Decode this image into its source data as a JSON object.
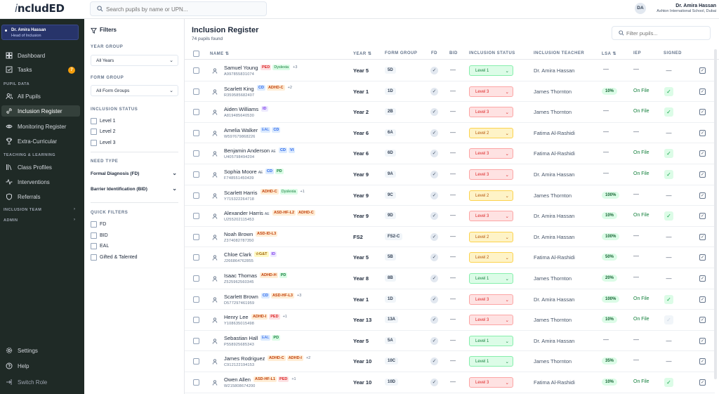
{
  "app": {
    "logo": "ncludED",
    "logo_prefix": "i"
  },
  "search": {
    "placeholder": "Search pupils by name or UPN..."
  },
  "user": {
    "initials": "DA",
    "name": "Dr. Amira Hassan",
    "school": "Ashton International School, Dubai"
  },
  "sidebar": {
    "role": {
      "name": "Dr. Amira Hassan",
      "title": "Head of Inclusion"
    },
    "dashboard": "Dashboard",
    "tasks": "Tasks",
    "tasks_badge": "7",
    "section_pupil": "PUPIL DATA",
    "all_pupils": "All Pupils",
    "inclusion_register": "Inclusion Register",
    "monitoring_register": "Monitoring Register",
    "extra_curricular": "Extra-Curricular",
    "section_teaching": "TEACHING & LEARNING",
    "class_profiles": "Class Profiles",
    "interventions": "Interventions",
    "referrals": "Referrals",
    "section_team": "INCLUSION TEAM",
    "section_admin": "ADMIN",
    "settings": "Settings",
    "help": "Help",
    "switch_role": "Switch Role"
  },
  "filters": {
    "title": "Filters",
    "year_group_label": "YEAR GROUP",
    "year_group_value": "All Years",
    "form_group_label": "FORM GROUP",
    "form_group_value": "All Form Groups",
    "inclusion_status_label": "INCLUSION STATUS",
    "status_options": [
      "Level 1",
      "Level 2",
      "Level 3"
    ],
    "need_type_label": "NEED TYPE",
    "need_fd": "Formal Diagnosis (FD)",
    "need_bid": "Barrier Identification (BID)",
    "quick_filters_label": "QUICK FILTERS",
    "quick_options": [
      "FD",
      "BID",
      "EAL",
      "Gifted & Talented"
    ]
  },
  "main": {
    "title": "Inclusion Register",
    "count": "74 pupils found",
    "filter_placeholder": "Filter pupils...",
    "columns": {
      "name": "NAME ⇅",
      "year": "YEAR ⇅",
      "form": "FORM GROUP",
      "fd": "FD",
      "bid": "BID",
      "status": "INCLUSION STATUS",
      "teacher": "INCLUSION TEACHER",
      "lsa": "LSA ⇅",
      "iep": "IEP",
      "signed": "SIGNED"
    }
  },
  "colors": {
    "sidebar_bg": "#1f2a26",
    "accent_green": "#16a34a",
    "level1": "#15803d",
    "level2": "#b45309",
    "level3": "#dc2626"
  },
  "pupils": [
    {
      "name": "Samuel Young",
      "ae": "",
      "upn": "A997855831074",
      "tags": [
        [
          "PED",
          "ped"
        ],
        [
          "Dyslexia",
          "dys"
        ]
      ],
      "more": "+3",
      "year": "Year 5",
      "form": "5D",
      "level": "Level 1",
      "lvl": "l1",
      "teacher": "Dr. Amira Hassan",
      "lsa": "—",
      "iep": "—",
      "signed": "none"
    },
    {
      "name": "Scarlett King",
      "ae": "",
      "upn": "R359585682407",
      "tags": [
        [
          "CD",
          "cd"
        ],
        [
          "ADHD-C",
          "adhd"
        ]
      ],
      "more": "+2",
      "year": "Year 1",
      "form": "1D",
      "level": "Level 3",
      "lvl": "l3",
      "teacher": "James Thornton",
      "lsa": "10%",
      "iep": "On File",
      "signed": "yes"
    },
    {
      "name": "Aiden Williams",
      "ae": "",
      "upn": "A819485640530",
      "tags": [
        [
          "ID",
          "id"
        ]
      ],
      "more": "",
      "year": "Year 2",
      "form": "2B",
      "level": "Level 3",
      "lvl": "l3",
      "teacher": "James Thornton",
      "lsa": "—",
      "iep": "On File",
      "signed": "yes"
    },
    {
      "name": "Amelia Walker",
      "ae": "",
      "upn": "W597679868226",
      "tags": [
        [
          "EAL",
          "eal"
        ],
        [
          "CD",
          "cd"
        ]
      ],
      "more": "",
      "year": "Year 6",
      "form": "6A",
      "level": "Level 2",
      "lvl": "l2",
      "teacher": "Fatima Al-Rashidi",
      "lsa": "—",
      "iep": "—",
      "signed": "none"
    },
    {
      "name": "Benjamin Anderson",
      "ae": "AE",
      "upn": "U405798494204",
      "tags": [
        [
          "CD",
          "cd"
        ],
        [
          "VI",
          "vi"
        ]
      ],
      "more": "",
      "year": "Year 6",
      "form": "6D",
      "level": "Level 3",
      "lvl": "l3",
      "teacher": "Fatima Al-Rashidi",
      "lsa": "—",
      "iep": "On File",
      "signed": "yes"
    },
    {
      "name": "Sophia Moore",
      "ae": "AE",
      "upn": "F748551450439",
      "tags": [
        [
          "CD",
          "cd"
        ],
        [
          "PD",
          "pd"
        ]
      ],
      "more": "",
      "year": "Year 9",
      "form": "9A",
      "level": "Level 3",
      "lvl": "l3",
      "teacher": "Dr. Amira Hassan",
      "lsa": "—",
      "iep": "On File",
      "signed": "yes"
    },
    {
      "name": "Scarlett Harris",
      "ae": "",
      "upn": "Y715322264718",
      "tags": [
        [
          "ADHD-C",
          "adhd"
        ],
        [
          "Dyslexia",
          "dys"
        ]
      ],
      "more": "+1",
      "year": "Year 9",
      "form": "9C",
      "level": "Level 2",
      "lvl": "l2",
      "teacher": "James Thornton",
      "lsa": "100%",
      "iep": "—",
      "signed": "none"
    },
    {
      "name": "Alexander Harris",
      "ae": "AE",
      "upn": "U255202115453",
      "tags": [
        [
          "ASD-HF-L2",
          "asd"
        ],
        [
          "ADHD-C",
          "adhd"
        ]
      ],
      "more": "",
      "year": "Year 9",
      "form": "9D",
      "level": "Level 3",
      "lvl": "l3",
      "teacher": "Dr. Amira Hassan",
      "lsa": "10%",
      "iep": "On File",
      "signed": "yes"
    },
    {
      "name": "Noah Brown",
      "ae": "",
      "upn": "Z374082787350",
      "tags": [
        [
          "ASD-ID-L3",
          "asd"
        ]
      ],
      "more": "",
      "year": "FS2",
      "form": "FS2-C",
      "level": "Level 2",
      "lvl": "l2",
      "teacher": "Dr. Amira Hassan",
      "lsa": "100%",
      "iep": "—",
      "signed": "none"
    },
    {
      "name": "Chloe Clark",
      "ae": "",
      "upn": "J266864762855",
      "tags": [
        [
          "☆G&T",
          "gt"
        ],
        [
          "ID",
          "id"
        ]
      ],
      "more": "",
      "year": "Year 5",
      "form": "5B",
      "level": "Level 2",
      "lvl": "l2",
      "teacher": "Fatima Al-Rashidi",
      "lsa": "50%",
      "iep": "—",
      "signed": "none"
    },
    {
      "name": "Isaac Thomas",
      "ae": "",
      "upn": "Z525962560345",
      "tags": [
        [
          "ADHD-H",
          "adhd"
        ],
        [
          "PD",
          "pd"
        ]
      ],
      "more": "",
      "year": "Year 8",
      "form": "8B",
      "level": "Level 1",
      "lvl": "l1",
      "teacher": "James Thornton",
      "lsa": "20%",
      "iep": "—",
      "signed": "none"
    },
    {
      "name": "Scarlett Brown",
      "ae": "",
      "upn": "D577297461959",
      "tags": [
        [
          "CD",
          "cd"
        ],
        [
          "ASD-HF-L3",
          "asd"
        ]
      ],
      "more": "+3",
      "year": "Year 1",
      "form": "1D",
      "level": "Level 3",
      "lvl": "l3",
      "teacher": "Dr. Amira Hassan",
      "lsa": "100%",
      "iep": "On File",
      "signed": "yes"
    },
    {
      "name": "Henry Lee",
      "ae": "",
      "upn": "Y108635015498",
      "tags": [
        [
          "ADHD-I",
          "adhd"
        ],
        [
          "PED",
          "ped"
        ]
      ],
      "more": "+1",
      "year": "Year 13",
      "form": "13A",
      "level": "Level 3",
      "lvl": "l3",
      "teacher": "James Thornton",
      "lsa": "10%",
      "iep": "On File",
      "signed": "pending"
    },
    {
      "name": "Sebastian Hall",
      "ae": "",
      "upn": "P558925685343",
      "tags": [
        [
          "EAL",
          "eal"
        ],
        [
          "PD",
          "pd"
        ]
      ],
      "more": "",
      "year": "Year 5",
      "form": "5A",
      "level": "Level 1",
      "lvl": "l1",
      "teacher": "Dr. Amira Hassan",
      "lsa": "—",
      "iep": "—",
      "signed": "none"
    },
    {
      "name": "James Rodriguez",
      "ae": "",
      "upn": "C912122194153",
      "tags": [
        [
          "ADHD-C",
          "adhd"
        ],
        [
          "ADHD-I",
          "adhd"
        ]
      ],
      "more": "+2",
      "year": "Year 10",
      "form": "10C",
      "level": "Level 1",
      "lvl": "l1",
      "teacher": "James Thornton",
      "lsa": "35%",
      "iep": "—",
      "signed": "none"
    },
    {
      "name": "Owen Allen",
      "ae": "",
      "upn": "W215808674200",
      "tags": [
        [
          "ASD-HF-L1",
          "asd"
        ],
        [
          "PED",
          "ped"
        ]
      ],
      "more": "+1",
      "year": "Year 10",
      "form": "10D",
      "level": "Level 3",
      "lvl": "l3",
      "teacher": "Fatima Al-Rashidi",
      "lsa": "10%",
      "iep": "On File",
      "signed": "yes"
    }
  ]
}
